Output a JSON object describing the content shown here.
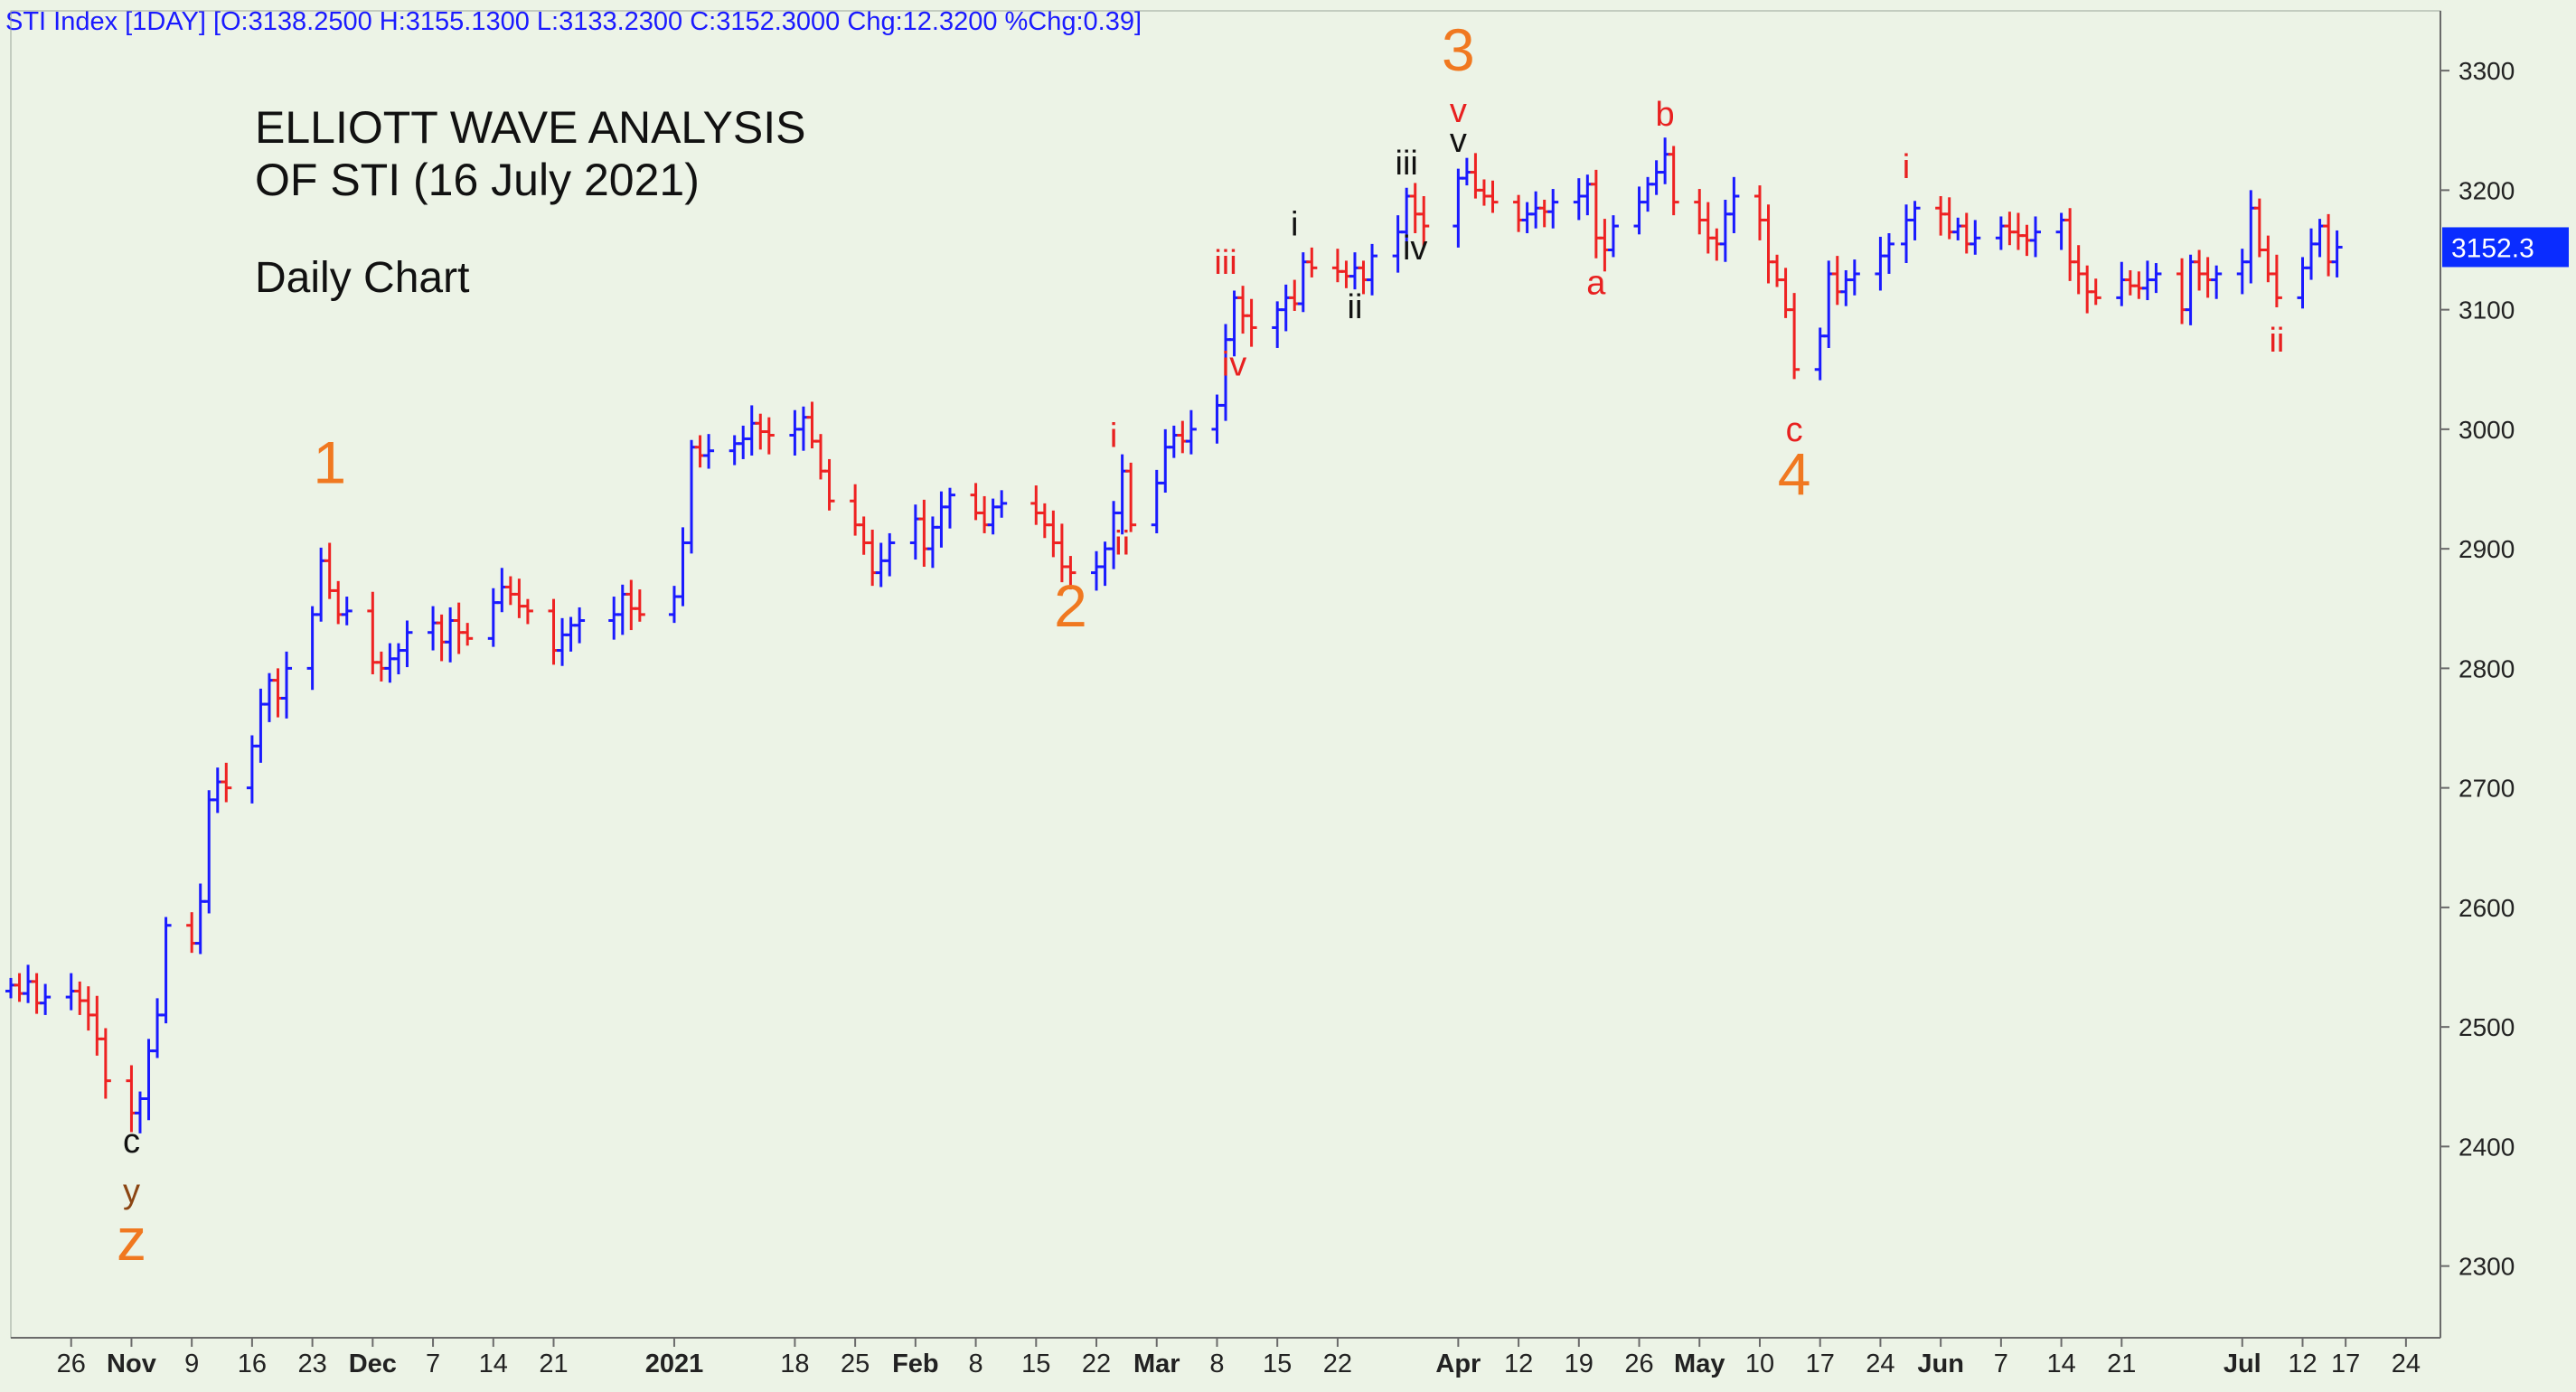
{
  "header": {
    "text": "STI Index [1DAY] [O:3138.2500 H:3155.1300 L:3133.2300 C:3152.3000 Chg:12.3200 %Chg:0.39]"
  },
  "title": {
    "line1": "ELLIOTT WAVE ANALYSIS",
    "line2": "OF STI (16 July 2021)",
    "subtitle": "Daily Chart"
  },
  "colors": {
    "background": "#ecf3e6",
    "up_bar": "#1a1aff",
    "down_bar": "#ee2222",
    "wave_major": "#f07820",
    "wave_minor": "#e82020",
    "wave_black": "#111111",
    "wave_brown": "#8b4513",
    "last_price_bg": "#0a2cff",
    "axis_line": "#6a6a6a"
  },
  "last_price_label": "3152.3",
  "chart_data": {
    "type": "ohlc",
    "instrument": "STI Index",
    "interval": "1DAY",
    "ylim": [
      2240,
      3350
    ],
    "y_ticks": [
      2300,
      2400,
      2500,
      2600,
      2700,
      2800,
      2900,
      3000,
      3100,
      3200,
      3300
    ],
    "x_ticks": [
      {
        "label": "26",
        "date": "2020-10-26",
        "bold": false
      },
      {
        "label": "Nov",
        "date": "2020-11-02",
        "bold": true
      },
      {
        "label": "9",
        "date": "2020-11-09",
        "bold": false
      },
      {
        "label": "16",
        "date": "2020-11-16",
        "bold": false
      },
      {
        "label": "23",
        "date": "2020-11-23",
        "bold": false
      },
      {
        "label": "Dec",
        "date": "2020-11-30",
        "bold": true
      },
      {
        "label": "7",
        "date": "2020-12-07",
        "bold": false
      },
      {
        "label": "14",
        "date": "2020-12-14",
        "bold": false
      },
      {
        "label": "21",
        "date": "2020-12-21",
        "bold": false
      },
      {
        "label": "2021",
        "date": "2021-01-04",
        "bold": true
      },
      {
        "label": "18",
        "date": "2021-01-18",
        "bold": false
      },
      {
        "label": "25",
        "date": "2021-01-25",
        "bold": false
      },
      {
        "label": "Feb",
        "date": "2021-02-01",
        "bold": true
      },
      {
        "label": "8",
        "date": "2021-02-08",
        "bold": false
      },
      {
        "label": "15",
        "date": "2021-02-15",
        "bold": false
      },
      {
        "label": "22",
        "date": "2021-02-22",
        "bold": false
      },
      {
        "label": "Mar",
        "date": "2021-03-01",
        "bold": true
      },
      {
        "label": "8",
        "date": "2021-03-08",
        "bold": false
      },
      {
        "label": "15",
        "date": "2021-03-15",
        "bold": false
      },
      {
        "label": "22",
        "date": "2021-03-22",
        "bold": false
      },
      {
        "label": "Apr",
        "date": "2021-04-05",
        "bold": true
      },
      {
        "label": "12",
        "date": "2021-04-12",
        "bold": false
      },
      {
        "label": "19",
        "date": "2021-04-19",
        "bold": false
      },
      {
        "label": "26",
        "date": "2021-04-26",
        "bold": false
      },
      {
        "label": "May",
        "date": "2021-05-03",
        "bold": true
      },
      {
        "label": "10",
        "date": "2021-05-10",
        "bold": false
      },
      {
        "label": "17",
        "date": "2021-05-17",
        "bold": false
      },
      {
        "label": "24",
        "date": "2021-05-24",
        "bold": false
      },
      {
        "label": "Jun",
        "date": "2021-05-31",
        "bold": true
      },
      {
        "label": "7",
        "date": "2021-06-07",
        "bold": false
      },
      {
        "label": "14",
        "date": "2021-06-14",
        "bold": false
      },
      {
        "label": "21",
        "date": "2021-06-21",
        "bold": false
      },
      {
        "label": "Jul",
        "date": "2021-07-05",
        "bold": true
      },
      {
        "label": "12",
        "date": "2021-07-12",
        "bold": false
      },
      {
        "label": "17",
        "date": "2021-07-17",
        "bold": false
      },
      {
        "label": "24",
        "date": "2021-07-24",
        "bold": false
      }
    ],
    "closes": [
      [
        "2020-10-19",
        2535
      ],
      [
        "2020-10-20",
        2528
      ],
      [
        "2020-10-21",
        2538
      ],
      [
        "2020-10-22",
        2520
      ],
      [
        "2020-10-23",
        2525
      ],
      [
        "2020-10-26",
        2530
      ],
      [
        "2020-10-27",
        2522
      ],
      [
        "2020-10-28",
        2510
      ],
      [
        "2020-10-29",
        2490
      ],
      [
        "2020-10-30",
        2455
      ],
      [
        "2020-11-02",
        2428
      ],
      [
        "2020-11-03",
        2440
      ],
      [
        "2020-11-04",
        2480
      ],
      [
        "2020-11-05",
        2510
      ],
      [
        "2020-11-06",
        2585
      ],
      [
        "2020-11-09",
        2570
      ],
      [
        "2020-11-10",
        2605
      ],
      [
        "2020-11-11",
        2690
      ],
      [
        "2020-11-12",
        2705
      ],
      [
        "2020-11-13",
        2700
      ],
      [
        "2020-11-16",
        2735
      ],
      [
        "2020-11-17",
        2770
      ],
      [
        "2020-11-18",
        2790
      ],
      [
        "2020-11-19",
        2775
      ],
      [
        "2020-11-20",
        2800
      ],
      [
        "2020-11-23",
        2845
      ],
      [
        "2020-11-24",
        2890
      ],
      [
        "2020-11-25",
        2865
      ],
      [
        "2020-11-26",
        2845
      ],
      [
        "2020-11-27",
        2848
      ],
      [
        "2020-11-30",
        2805
      ],
      [
        "2020-12-01",
        2800
      ],
      [
        "2020-12-02",
        2808
      ],
      [
        "2020-12-03",
        2815
      ],
      [
        "2020-12-04",
        2830
      ],
      [
        "2020-12-07",
        2838
      ],
      [
        "2020-12-08",
        2822
      ],
      [
        "2020-12-09",
        2840
      ],
      [
        "2020-12-10",
        2830
      ],
      [
        "2020-12-11",
        2825
      ],
      [
        "2020-12-14",
        2855
      ],
      [
        "2020-12-15",
        2868
      ],
      [
        "2020-12-16",
        2862
      ],
      [
        "2020-12-17",
        2852
      ],
      [
        "2020-12-18",
        2848
      ],
      [
        "2020-12-21",
        2815
      ],
      [
        "2020-12-22",
        2828
      ],
      [
        "2020-12-23",
        2836
      ],
      [
        "2020-12-24",
        2840
      ],
      [
        "2020-12-28",
        2845
      ],
      [
        "2020-12-29",
        2862
      ],
      [
        "2020-12-30",
        2850
      ],
      [
        "2020-12-31",
        2845
      ],
      [
        "2021-01-04",
        2860
      ],
      [
        "2021-01-05",
        2905
      ],
      [
        "2021-01-06",
        2985
      ],
      [
        "2021-01-07",
        2978
      ],
      [
        "2021-01-08",
        2982
      ],
      [
        "2021-01-11",
        2988
      ],
      [
        "2021-01-12",
        2992
      ],
      [
        "2021-01-13",
        3005
      ],
      [
        "2021-01-14",
        2998
      ],
      [
        "2021-01-15",
        2995
      ],
      [
        "2021-01-18",
        3000
      ],
      [
        "2021-01-19",
        3010
      ],
      [
        "2021-01-20",
        2990
      ],
      [
        "2021-01-21",
        2965
      ],
      [
        "2021-01-22",
        2940
      ],
      [
        "2021-01-25",
        2920
      ],
      [
        "2021-01-26",
        2905
      ],
      [
        "2021-01-27",
        2880
      ],
      [
        "2021-01-28",
        2890
      ],
      [
        "2021-01-29",
        2905
      ],
      [
        "2021-02-01",
        2925
      ],
      [
        "2021-02-02",
        2900
      ],
      [
        "2021-02-03",
        2918
      ],
      [
        "2021-02-04",
        2935
      ],
      [
        "2021-02-05",
        2945
      ],
      [
        "2021-02-08",
        2930
      ],
      [
        "2021-02-09",
        2920
      ],
      [
        "2021-02-10",
        2935
      ],
      [
        "2021-02-11",
        2938
      ],
      [
        "2021-02-15",
        2930
      ],
      [
        "2021-02-16",
        2920
      ],
      [
        "2021-02-17",
        2905
      ],
      [
        "2021-02-18",
        2885
      ],
      [
        "2021-02-19",
        2880
      ],
      [
        "2021-02-22",
        2885
      ],
      [
        "2021-02-23",
        2900
      ],
      [
        "2021-02-24",
        2930
      ],
      [
        "2021-02-25",
        2965
      ],
      [
        "2021-02-26",
        2920
      ],
      [
        "2021-03-01",
        2955
      ],
      [
        "2021-03-02",
        2985
      ],
      [
        "2021-03-03",
        2995
      ],
      [
        "2021-03-04",
        2990
      ],
      [
        "2021-03-05",
        3000
      ],
      [
        "2021-03-08",
        3020
      ],
      [
        "2021-03-09",
        3075
      ],
      [
        "2021-03-10",
        3110
      ],
      [
        "2021-03-11",
        3095
      ],
      [
        "2021-03-12",
        3085
      ],
      [
        "2021-03-15",
        3100
      ],
      [
        "2021-03-16",
        3110
      ],
      [
        "2021-03-17",
        3105
      ],
      [
        "2021-03-18",
        3140
      ],
      [
        "2021-03-19",
        3135
      ],
      [
        "2021-03-22",
        3132
      ],
      [
        "2021-03-23",
        3128
      ],
      [
        "2021-03-24",
        3135
      ],
      [
        "2021-03-25",
        3125
      ],
      [
        "2021-03-26",
        3145
      ],
      [
        "2021-03-29",
        3165
      ],
      [
        "2021-03-30",
        3195
      ],
      [
        "2021-03-31",
        3180
      ],
      [
        "2021-04-01",
        3170
      ],
      [
        "2021-04-05",
        3210
      ],
      [
        "2021-04-06",
        3215
      ],
      [
        "2021-04-07",
        3200
      ],
      [
        "2021-04-08",
        3195
      ],
      [
        "2021-04-09",
        3190
      ],
      [
        "2021-04-12",
        3175
      ],
      [
        "2021-04-13",
        3180
      ],
      [
        "2021-04-14",
        3185
      ],
      [
        "2021-04-15",
        3182
      ],
      [
        "2021-04-16",
        3190
      ],
      [
        "2021-04-19",
        3195
      ],
      [
        "2021-04-20",
        3205
      ],
      [
        "2021-04-21",
        3160
      ],
      [
        "2021-04-22",
        3150
      ],
      [
        "2021-04-23",
        3170
      ],
      [
        "2021-04-26",
        3190
      ],
      [
        "2021-04-27",
        3205
      ],
      [
        "2021-04-28",
        3215
      ],
      [
        "2021-04-29",
        3230
      ],
      [
        "2021-04-30",
        3190
      ],
      [
        "2021-05-03",
        3175
      ],
      [
        "2021-05-04",
        3160
      ],
      [
        "2021-05-05",
        3155
      ],
      [
        "2021-05-06",
        3180
      ],
      [
        "2021-05-07",
        3195
      ],
      [
        "2021-05-10",
        3175
      ],
      [
        "2021-05-11",
        3140
      ],
      [
        "2021-05-12",
        3125
      ],
      [
        "2021-05-13",
        3100
      ],
      [
        "2021-05-14",
        3050
      ],
      [
        "2021-05-17",
        3078
      ],
      [
        "2021-05-18",
        3130
      ],
      [
        "2021-05-19",
        3115
      ],
      [
        "2021-05-20",
        3125
      ],
      [
        "2021-05-21",
        3130
      ],
      [
        "2021-05-24",
        3145
      ],
      [
        "2021-05-25",
        3155
      ],
      [
        "2021-05-27",
        3175
      ],
      [
        "2021-05-28",
        3185
      ],
      [
        "2021-05-31",
        3180
      ],
      [
        "2021-06-01",
        3165
      ],
      [
        "2021-06-02",
        3170
      ],
      [
        "2021-06-03",
        3155
      ],
      [
        "2021-06-04",
        3160
      ],
      [
        "2021-06-07",
        3170
      ],
      [
        "2021-06-08",
        3165
      ],
      [
        "2021-06-09",
        3162
      ],
      [
        "2021-06-10",
        3158
      ],
      [
        "2021-06-11",
        3165
      ],
      [
        "2021-06-14",
        3175
      ],
      [
        "2021-06-15",
        3140
      ],
      [
        "2021-06-16",
        3130
      ],
      [
        "2021-06-17",
        3115
      ],
      [
        "2021-06-18",
        3110
      ],
      [
        "2021-06-21",
        3125
      ],
      [
        "2021-06-22",
        3120
      ],
      [
        "2021-06-23",
        3118
      ],
      [
        "2021-06-24",
        3125
      ],
      [
        "2021-06-25",
        3130
      ],
      [
        "2021-06-28",
        3100
      ],
      [
        "2021-06-29",
        3140
      ],
      [
        "2021-06-30",
        3130
      ],
      [
        "2021-07-01",
        3125
      ],
      [
        "2021-07-02",
        3130
      ],
      [
        "2021-07-05",
        3140
      ],
      [
        "2021-07-06",
        3185
      ],
      [
        "2021-07-07",
        3150
      ],
      [
        "2021-07-08",
        3130
      ],
      [
        "2021-07-09",
        3110
      ],
      [
        "2021-07-12",
        3135
      ],
      [
        "2021-07-13",
        3155
      ],
      [
        "2021-07-14",
        3170
      ],
      [
        "2021-07-15",
        3140
      ],
      [
        "2021-07-16",
        3152.3
      ]
    ],
    "wave_labels": [
      {
        "text": "c",
        "date": "2020-11-02",
        "price": 2395,
        "color": "black",
        "size": "small"
      },
      {
        "text": "y",
        "date": "2020-11-02",
        "price": 2353,
        "color": "brown",
        "size": "small"
      },
      {
        "text": "z",
        "date": "2020-11-02",
        "price": 2305,
        "color": "orange",
        "size": "big"
      },
      {
        "text": "1",
        "date": "2020-11-25",
        "price": 2955,
        "color": "orange",
        "size": "big"
      },
      {
        "text": "2",
        "date": "2021-02-19",
        "price": 2835,
        "color": "orange",
        "size": "big"
      },
      {
        "text": "i",
        "date": "2021-02-24",
        "price": 2985,
        "color": "red",
        "size": "small"
      },
      {
        "text": "ii",
        "date": "2021-02-25",
        "price": 2895,
        "color": "red",
        "size": "small"
      },
      {
        "text": "iii",
        "date": "2021-03-09",
        "price": 3130,
        "color": "red",
        "size": "small"
      },
      {
        "text": "iv",
        "date": "2021-03-10",
        "price": 3045,
        "color": "red",
        "size": "small"
      },
      {
        "text": "i",
        "date": "2021-03-17",
        "price": 3162,
        "color": "black",
        "size": "small"
      },
      {
        "text": "ii",
        "date": "2021-03-24",
        "price": 3093,
        "color": "black",
        "size": "small"
      },
      {
        "text": "iii",
        "date": "2021-03-30",
        "price": 3213,
        "color": "black",
        "size": "small"
      },
      {
        "text": "iv",
        "date": "2021-03-31",
        "price": 3142,
        "color": "black",
        "size": "small"
      },
      {
        "text": "3",
        "date": "2021-04-05",
        "price": 3300,
        "color": "orange",
        "size": "big"
      },
      {
        "text": "v",
        "date": "2021-04-05",
        "price": 3257,
        "color": "red",
        "size": "small"
      },
      {
        "text": "v",
        "date": "2021-04-05",
        "price": 3232,
        "color": "black",
        "size": "small"
      },
      {
        "text": "a",
        "date": "2021-04-21",
        "price": 3113,
        "color": "red",
        "size": "small"
      },
      {
        "text": "b",
        "date": "2021-04-29",
        "price": 3254,
        "color": "red",
        "size": "small"
      },
      {
        "text": "c",
        "date": "2021-05-14",
        "price": 2990,
        "color": "red",
        "size": "small"
      },
      {
        "text": "4",
        "date": "2021-05-14",
        "price": 2945,
        "color": "orange",
        "size": "big"
      },
      {
        "text": "i",
        "date": "2021-05-27",
        "price": 3210,
        "color": "red",
        "size": "small"
      },
      {
        "text": "ii",
        "date": "2021-07-09",
        "price": 3065,
        "color": "red",
        "size": "small"
      }
    ]
  }
}
